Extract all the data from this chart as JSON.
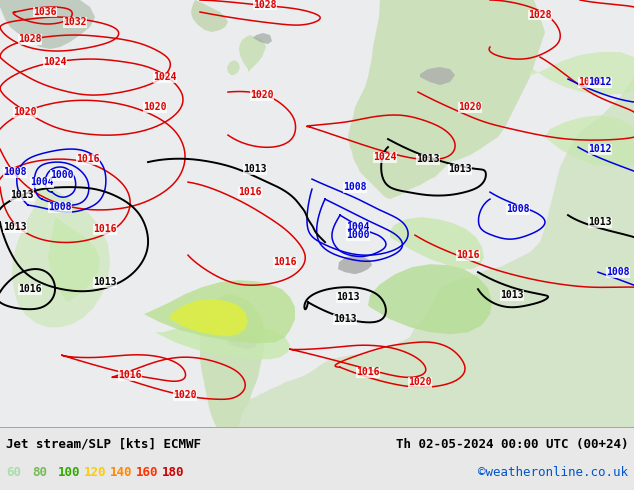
{
  "title_left": "Jet stream/SLP [kts] ECMWF",
  "title_right": "Th 02-05-2024 00:00 UTC (00+24)",
  "credit": "©weatheronline.co.uk",
  "legend_values": [
    "60",
    "80",
    "100",
    "120",
    "140",
    "160",
    "180"
  ],
  "legend_colors": [
    "#aaddaa",
    "#77bb55",
    "#33aa00",
    "#ffcc00",
    "#ff8800",
    "#ff3300",
    "#cc0000"
  ],
  "bottom_bar_color": "#e8e8e8",
  "title_fontsize": 9,
  "credit_color": "#0055cc",
  "legend_fontsize": 9,
  "map_ocean_color": "#e8eef0",
  "map_land_color": "#d8e8d0",
  "map_mountain_color": "#b8b8b8",
  "jet_green_light": "#c8e8b0",
  "jet_green_mid": "#88cc66",
  "jet_green_dark": "#44aa22",
  "jet_yellow": "#eeee44",
  "jet_orange": "#ffaa00"
}
